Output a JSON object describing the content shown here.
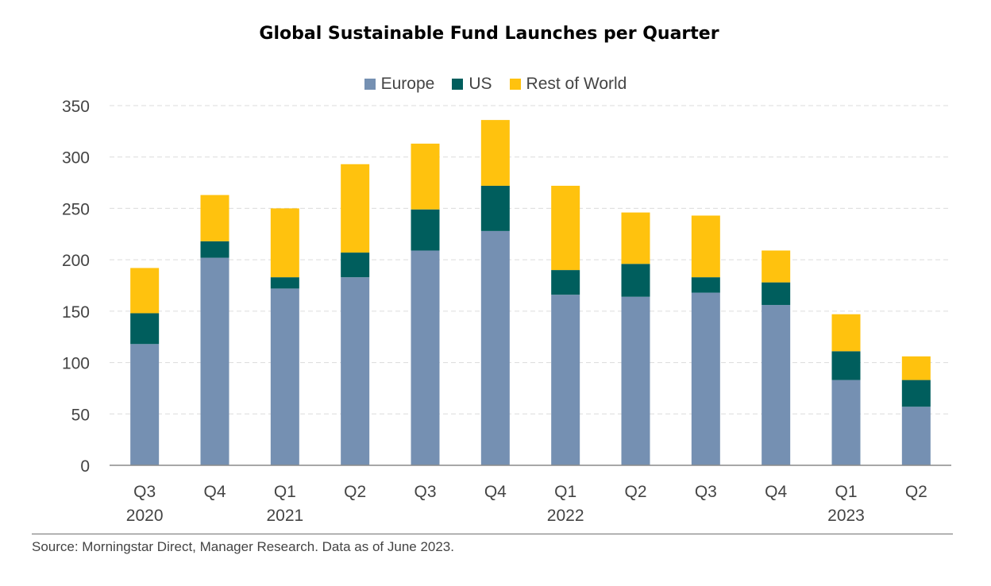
{
  "chart_data": {
    "type": "bar",
    "stacked": true,
    "title": "Global Sustainable Fund Launches per Quarter",
    "categories": [
      {
        "quarter": "Q3",
        "year": "2020"
      },
      {
        "quarter": "Q4",
        "year": ""
      },
      {
        "quarter": "Q1",
        "year": "2021"
      },
      {
        "quarter": "Q2",
        "year": ""
      },
      {
        "quarter": "Q3",
        "year": ""
      },
      {
        "quarter": "Q4",
        "year": ""
      },
      {
        "quarter": "Q1",
        "year": "2022"
      },
      {
        "quarter": "Q2",
        "year": ""
      },
      {
        "quarter": "Q3",
        "year": ""
      },
      {
        "quarter": "Q4",
        "year": ""
      },
      {
        "quarter": "Q1",
        "year": "2023"
      },
      {
        "quarter": "Q2",
        "year": ""
      }
    ],
    "series": [
      {
        "name": "Europe",
        "color": "#7590b2",
        "values": [
          118,
          202,
          172,
          183,
          209,
          228,
          166,
          164,
          168,
          156,
          83,
          57
        ]
      },
      {
        "name": "US",
        "color": "#005e5d",
        "values": [
          30,
          16,
          11,
          24,
          40,
          44,
          24,
          32,
          15,
          22,
          28,
          26
        ]
      },
      {
        "name": "Rest of World",
        "color": "#ffc20e",
        "values": [
          44,
          45,
          67,
          86,
          64,
          64,
          82,
          50,
          60,
          31,
          36,
          23
        ]
      }
    ],
    "ylim": [
      0,
      350
    ],
    "yticks": [
      0,
      50,
      100,
      150,
      200,
      250,
      300,
      350
    ],
    "grid": true,
    "legend_position": "top-center"
  },
  "footer": {
    "source": "Source: Morningstar Direct, Manager Research. Data as of June 2023."
  }
}
